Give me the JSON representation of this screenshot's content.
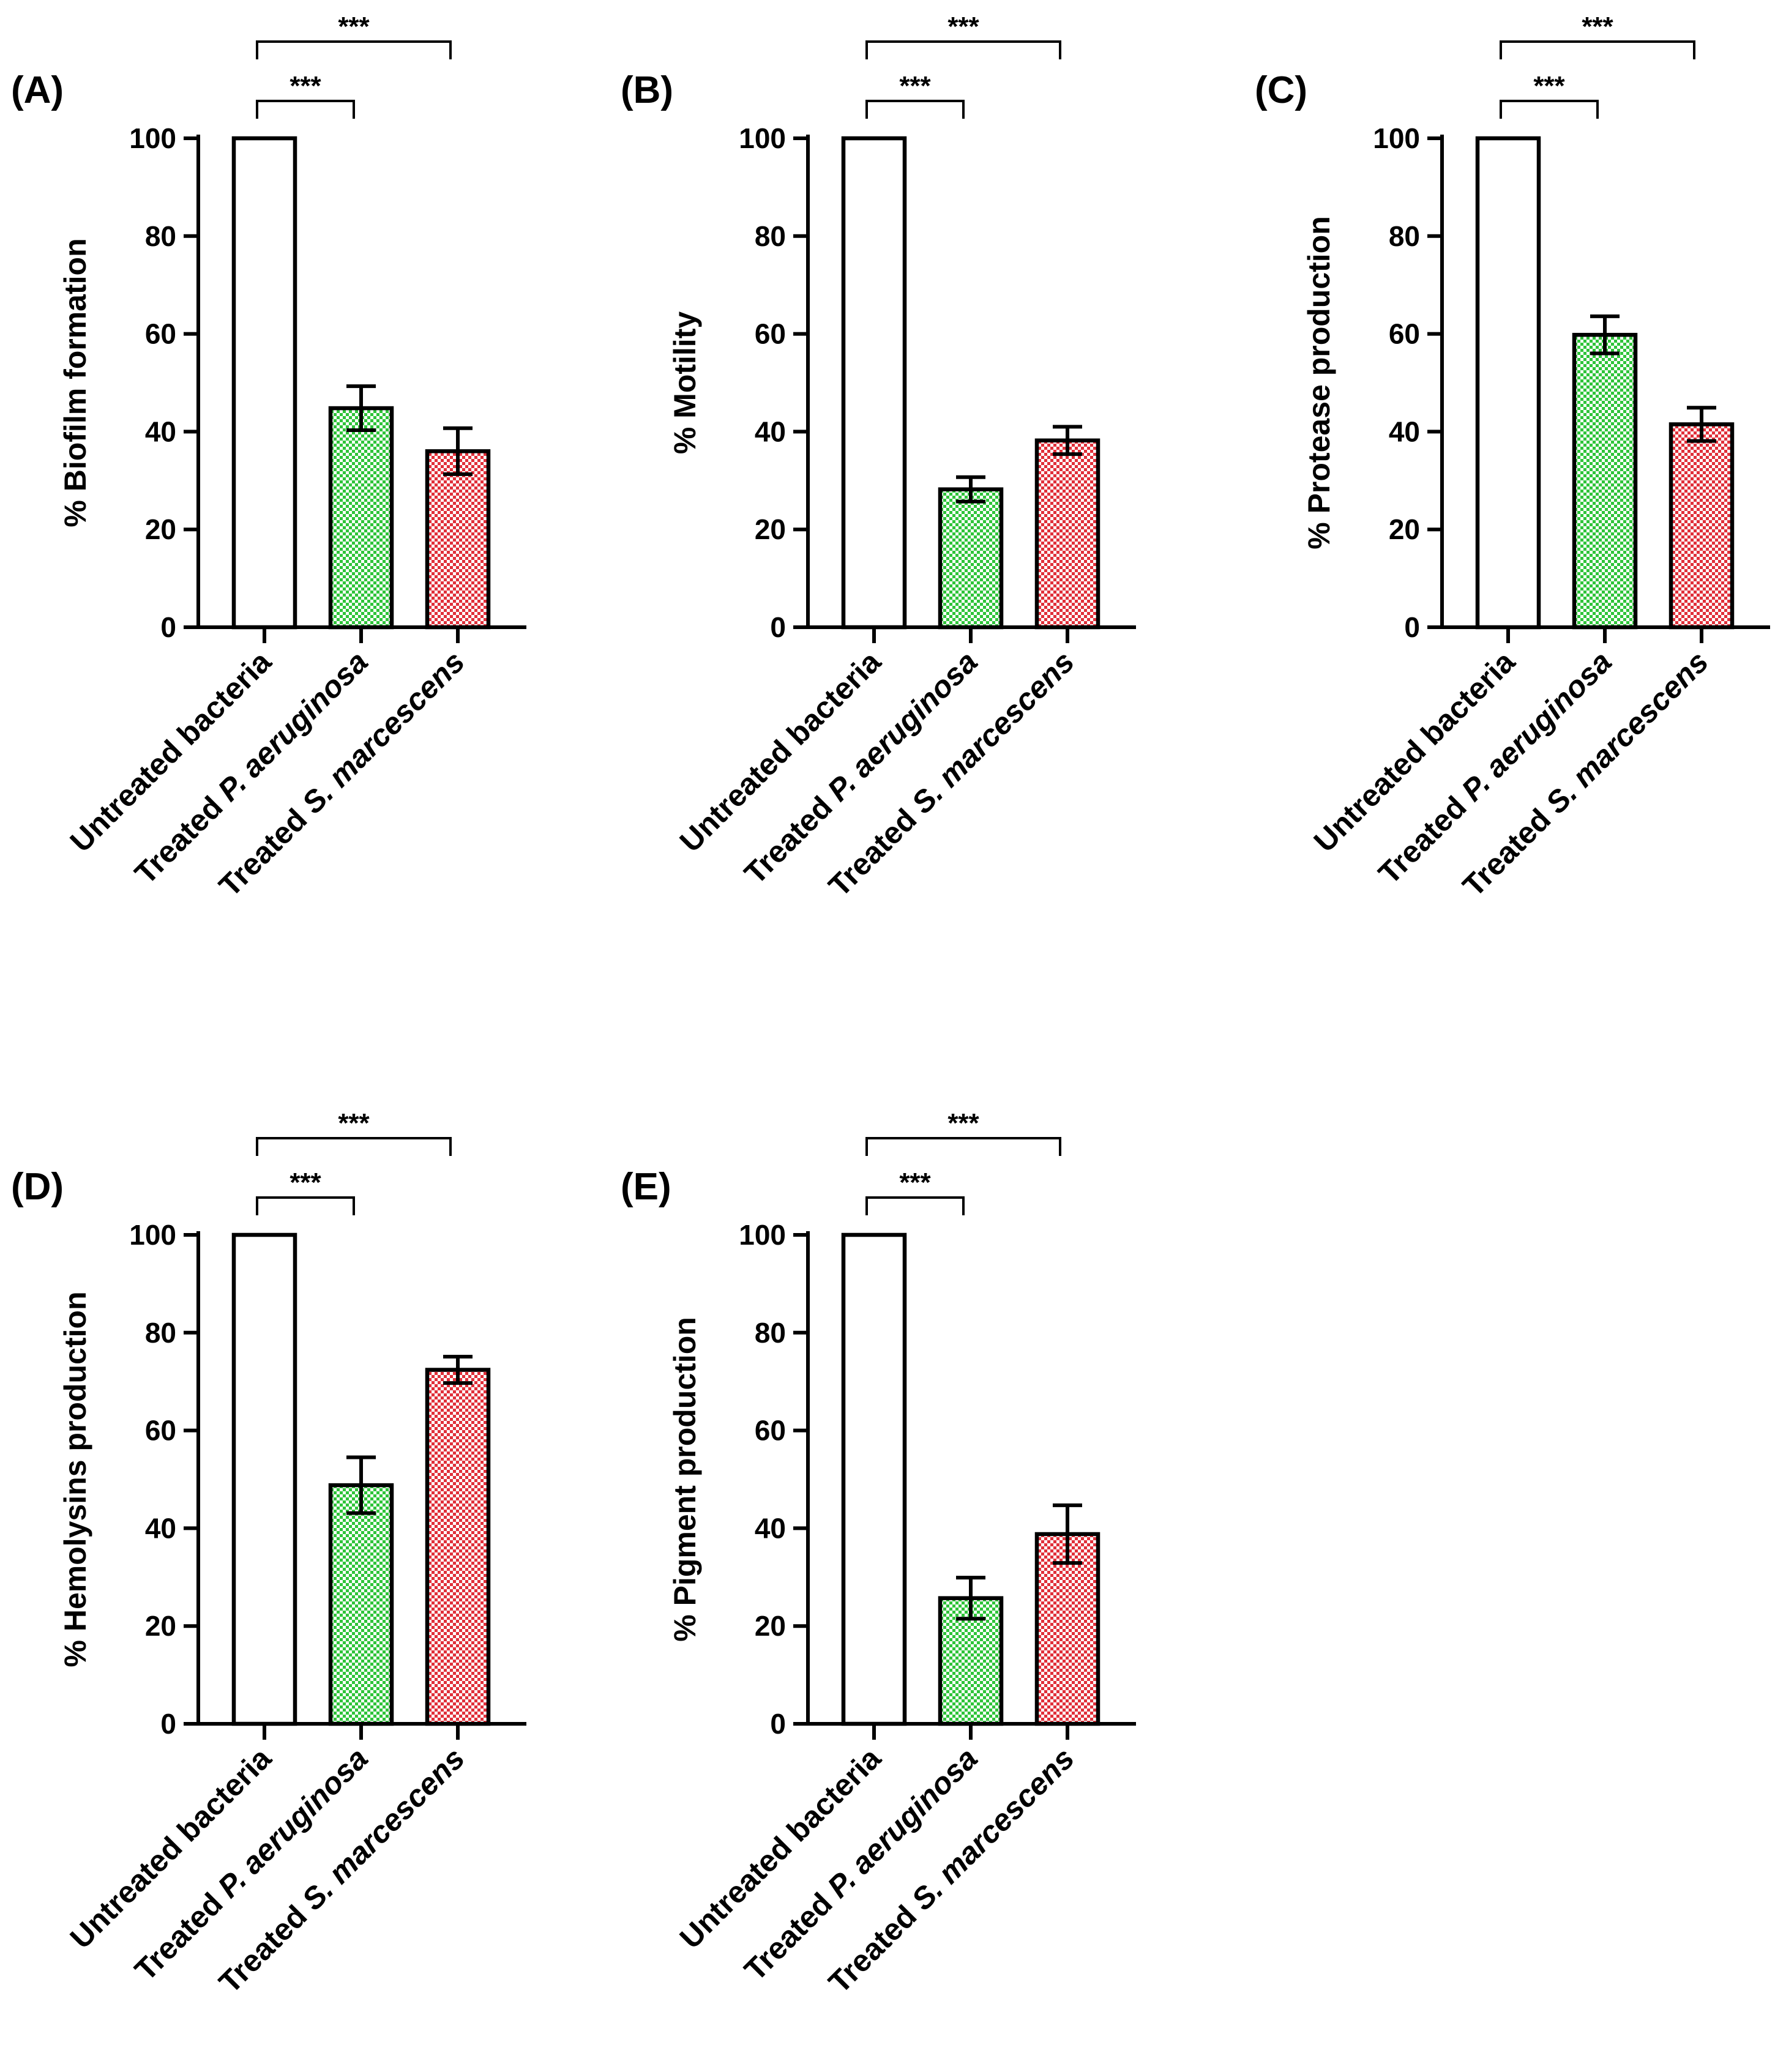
{
  "colors": {
    "green": "#2fc43a",
    "red": "#e0303a",
    "white": "#ffffff",
    "axis": "#000000"
  },
  "chart_data": [
    {
      "type": "bar",
      "panel": "(A)",
      "ylabel": "% Biofilm formation",
      "ylim": [
        0,
        100
      ],
      "yticks": [
        "0",
        "20",
        "40",
        "60",
        "80",
        "100"
      ],
      "categories": [
        {
          "prefix": "Untreated bacteria",
          "italic": ""
        },
        {
          "prefix": "Treated ",
          "italic": "P. aeruginosa"
        },
        {
          "prefix": "Treated ",
          "italic": "S. marcescens"
        }
      ],
      "values": [
        100,
        44.8,
        36
      ],
      "errors": [
        0,
        4.5,
        4.7
      ],
      "fills": [
        "white",
        "green",
        "red"
      ],
      "significance": [
        {
          "from": 0,
          "to": 1,
          "label": "***"
        },
        {
          "from": 0,
          "to": 2,
          "label": "***"
        }
      ]
    },
    {
      "type": "bar",
      "panel": "(B)",
      "ylabel": "% Motility",
      "ylim": [
        0,
        100
      ],
      "yticks": [
        "0",
        "20",
        "40",
        "60",
        "80",
        "100"
      ],
      "categories": [
        {
          "prefix": "Untreated bacteria",
          "italic": ""
        },
        {
          "prefix": "Treated ",
          "italic": "P. aeruginosa"
        },
        {
          "prefix": "Treated ",
          "italic": "S. marcescens"
        }
      ],
      "values": [
        100,
        28.2,
        38.2
      ],
      "errors": [
        0,
        2.5,
        2.8
      ],
      "fills": [
        "white",
        "green",
        "red"
      ],
      "significance": [
        {
          "from": 0,
          "to": 1,
          "label": "***"
        },
        {
          "from": 0,
          "to": 2,
          "label": "***"
        }
      ]
    },
    {
      "type": "bar",
      "panel": "(C)",
      "ylabel": "% Protease production",
      "ylim": [
        0,
        100
      ],
      "yticks": [
        "0",
        "20",
        "40",
        "60",
        "80",
        "100"
      ],
      "categories": [
        {
          "prefix": "Untreated bacteria",
          "italic": ""
        },
        {
          "prefix": "Treated ",
          "italic": "P. aeruginosa"
        },
        {
          "prefix": "Treated ",
          "italic": "S. marcescens"
        }
      ],
      "values": [
        100,
        59.8,
        41.5
      ],
      "errors": [
        0,
        3.8,
        3.4
      ],
      "fills": [
        "white",
        "green",
        "red"
      ],
      "significance": [
        {
          "from": 0,
          "to": 1,
          "label": "***"
        },
        {
          "from": 0,
          "to": 2,
          "label": "***"
        }
      ]
    },
    {
      "type": "bar",
      "panel": "(D)",
      "ylabel": "% Hemolysins production",
      "ylim": [
        0,
        100
      ],
      "yticks": [
        "0",
        "20",
        "40",
        "60",
        "80",
        "100"
      ],
      "categories": [
        {
          "prefix": "Untreated bacteria",
          "italic": ""
        },
        {
          "prefix": "Treated ",
          "italic": "P. aeruginosa"
        },
        {
          "prefix": "Treated ",
          "italic": "S. marcescens"
        }
      ],
      "values": [
        100,
        48.8,
        72.4
      ],
      "errors": [
        0,
        5.7,
        2.7
      ],
      "fills": [
        "white",
        "green",
        "red"
      ],
      "significance": [
        {
          "from": 0,
          "to": 1,
          "label": "***"
        },
        {
          "from": 0,
          "to": 2,
          "label": "***"
        }
      ]
    },
    {
      "type": "bar",
      "panel": "(E)",
      "ylabel": "% Pigment production",
      "ylim": [
        0,
        100
      ],
      "yticks": [
        "0",
        "20",
        "40",
        "60",
        "80",
        "100"
      ],
      "categories": [
        {
          "prefix": "Untreated bacteria",
          "italic": ""
        },
        {
          "prefix": "Treated ",
          "italic": "P. aeruginosa"
        },
        {
          "prefix": "Treated ",
          "italic": "S. marcescens"
        }
      ],
      "values": [
        100,
        25.7,
        38.8
      ],
      "errors": [
        0,
        4.2,
        5.9
      ],
      "fills": [
        "white",
        "green",
        "red"
      ],
      "significance": [
        {
          "from": 0,
          "to": 1,
          "label": "***"
        },
        {
          "from": 0,
          "to": 2,
          "label": "***"
        }
      ]
    }
  ]
}
